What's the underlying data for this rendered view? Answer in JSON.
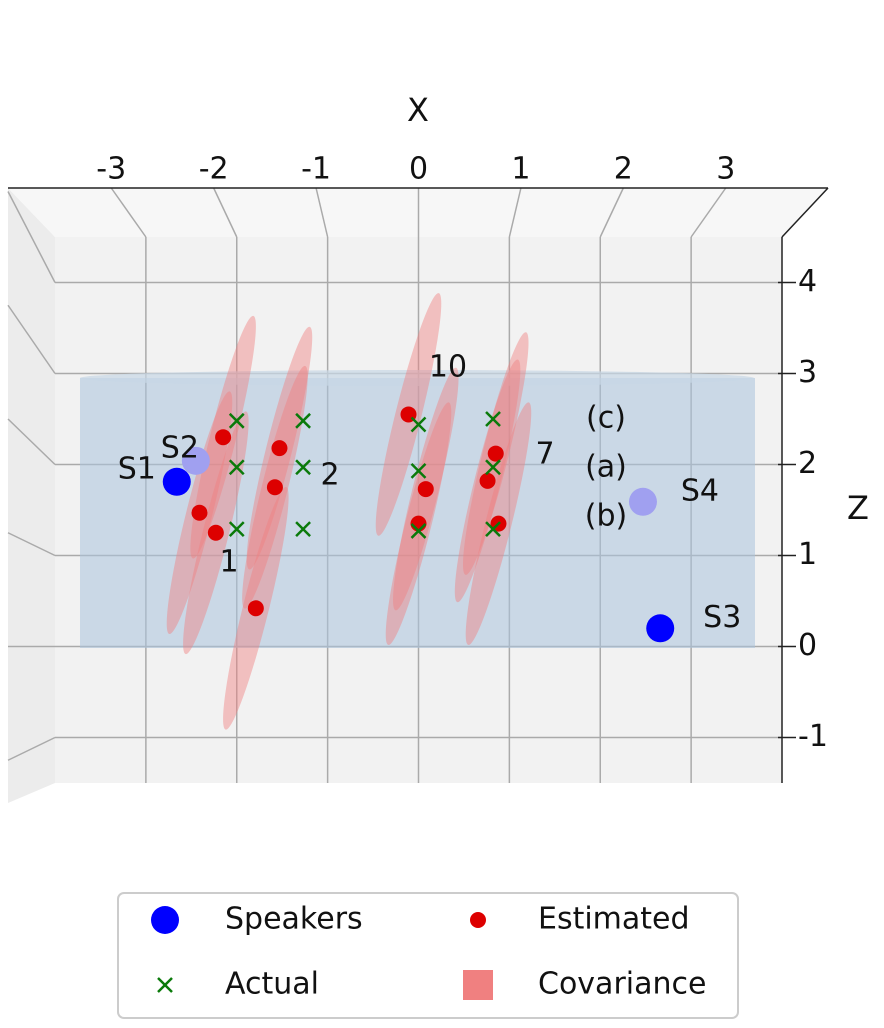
{
  "chart_data": {
    "type": "scatter",
    "xlabel": "X",
    "ylabel": "Z",
    "xlim": [
      -4,
      4
    ],
    "ylim": [
      -1.5,
      4.5
    ],
    "xticks": [
      -3,
      -2,
      -1,
      0,
      1,
      2,
      3
    ],
    "yticks": [
      -1,
      0,
      1,
      2,
      3,
      4
    ],
    "grid": true,
    "series": [
      {
        "name": "Speakers",
        "marker": "circle",
        "color": "#0000ff",
        "colors": [
          "#0000ff",
          "#a0a0f0",
          "#0000ff",
          "#a0a0f0"
        ],
        "labels": [
          "S1",
          "S2",
          "S3",
          "S4"
        ],
        "x": [
          -2.66,
          -2.45,
          2.66,
          2.47
        ],
        "values": [
          1.81,
          2.04,
          0.2,
          1.59
        ]
      },
      {
        "name": "Estimated",
        "marker": "circle",
        "color": "#dd0000",
        "x": [
          -2.15,
          -2.41,
          -2.23,
          -1.53,
          -1.58,
          -1.79,
          -0.11,
          0.08,
          0.0,
          0.85,
          0.76,
          0.88
        ],
        "values": [
          2.3,
          1.47,
          1.25,
          2.18,
          1.75,
          0.42,
          2.55,
          1.73,
          1.35,
          2.12,
          1.82,
          1.35
        ]
      },
      {
        "name": "Actual",
        "marker": "x",
        "color": "#0a7a0a",
        "x": [
          -2.0,
          -2.0,
          -2.0,
          -1.27,
          -1.27,
          -1.27,
          0.0,
          0.0,
          0.0,
          0.82,
          0.82,
          0.82
        ],
        "values": [
          2.48,
          1.97,
          1.29,
          2.48,
          1.97,
          1.29,
          2.44,
          1.93,
          1.27,
          2.5,
          1.97,
          1.29
        ]
      }
    ],
    "covariance": {
      "name": "Covariance",
      "color": "#f08080"
    },
    "annotations": [
      "1",
      "2",
      "7",
      "10",
      "(c)",
      "(a)",
      "(b)"
    ],
    "legend": "lower center"
  }
}
